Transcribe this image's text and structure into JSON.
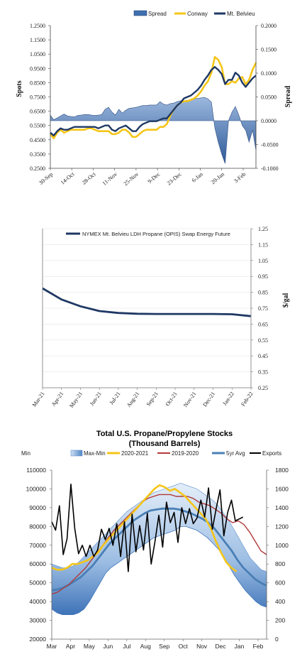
{
  "chart_data": [
    {
      "type": "line",
      "title": "",
      "ylabel": "Spots",
      "y2label": "Spread",
      "ylim": [
        0.25,
        1.25
      ],
      "y2lim": [
        -0.1,
        0.2
      ],
      "yticks": [
        "1.2500",
        "1.1500",
        "1.0500",
        "0.9500",
        "0.8500",
        "0.7500",
        "0.6500",
        "0.5500",
        "0.4500",
        "0.3500",
        "0.2500"
      ],
      "y2ticks": [
        "0.2000",
        "0.1500",
        "0.1000",
        "0.0500",
        "0.0000",
        "-0.0500",
        "-0.1000"
      ],
      "xticks": [
        "30-Sep",
        "14-Oct",
        "28-Oct",
        "11-Nov",
        "25-Nov",
        "9-Dec",
        "23-Dec",
        "6-Jan",
        "20-Jan",
        "3-Feb"
      ],
      "legend": [
        "Spread",
        "Conway",
        "Mt. Belvieu"
      ],
      "legend_position": "top-right",
      "colors": {
        "spread": "#3f6fb0",
        "conway": "#f5c518",
        "belvieu": "#1f3864"
      },
      "series": [
        {
          "name": "Conway",
          "values": [
            0.49,
            0.46,
            0.5,
            0.52,
            0.5,
            0.51,
            0.52,
            0.52,
            0.52,
            0.52,
            0.52,
            0.53,
            0.53,
            0.52,
            0.51,
            0.51,
            0.51,
            0.51,
            0.49,
            0.49,
            0.5,
            0.52,
            0.52,
            0.5,
            0.47,
            0.47,
            0.49,
            0.51,
            0.52,
            0.52,
            0.52,
            0.52,
            0.54,
            0.54,
            0.56,
            0.62,
            0.66,
            0.69,
            0.71,
            0.72,
            0.72,
            0.73,
            0.74,
            0.76,
            0.79,
            0.83,
            0.86,
            0.92,
            1.03,
            1.01,
            0.96,
            0.84,
            0.84,
            0.86,
            0.85,
            0.88,
            0.89,
            0.84,
            0.87,
            0.94,
            0.99
          ]
        },
        {
          "name": "Mt. Belvieu",
          "values": [
            0.5,
            0.48,
            0.51,
            0.53,
            0.52,
            0.52,
            0.53,
            0.54,
            0.54,
            0.54,
            0.54,
            0.54,
            0.54,
            0.54,
            0.53,
            0.54,
            0.55,
            0.55,
            0.52,
            0.51,
            0.53,
            0.54,
            0.55,
            0.53,
            0.51,
            0.51,
            0.54,
            0.56,
            0.57,
            0.58,
            0.58,
            0.58,
            0.59,
            0.6,
            0.6,
            0.63,
            0.66,
            0.69,
            0.71,
            0.74,
            0.75,
            0.76,
            0.78,
            0.8,
            0.83,
            0.87,
            0.9,
            0.94,
            0.96,
            0.94,
            0.91,
            0.84,
            0.87,
            0.87,
            0.92,
            0.9,
            0.85,
            0.82,
            0.85,
            0.88,
            0.9
          ]
        },
        {
          "name": "Spread",
          "values": [
            0.012,
            0.002,
            0.006,
            0.01,
            0.014,
            0.01,
            0.009,
            0.008,
            0.011,
            0.012,
            0.013,
            0.013,
            0.012,
            0.011,
            0.012,
            0.013,
            0.024,
            0.028,
            0.018,
            0.012,
            0.024,
            0.016,
            0.022,
            0.026,
            0.027,
            0.028,
            0.03,
            0.032,
            0.032,
            0.033,
            0.033,
            0.033,
            0.04,
            0.035,
            0.033,
            0.036,
            0.037,
            0.04,
            0.042,
            0.042,
            0.043,
            0.044,
            0.046,
            0.047,
            0.048,
            0.049,
            0.046,
            0.039,
            -0.015,
            -0.045,
            -0.07,
            -0.09,
            0.0,
            0.018,
            0.03,
            0.012,
            -0.01,
            -0.02,
            -0.045,
            -0.02,
            -0.062
          ]
        }
      ]
    },
    {
      "type": "line",
      "title": "",
      "y2label": "$/gal",
      "y2lim": [
        0.25,
        1.25
      ],
      "y2ticks": [
        "1.25",
        "1.15",
        "1.05",
        "0.95",
        "0.85",
        "0.75",
        "0.65",
        "0.55",
        "0.45",
        "0.35",
        "0.25"
      ],
      "xticks": [
        "Mar-21",
        "Apr-21",
        "May-21",
        "Jun-21",
        "Jul-21",
        "Aug-21",
        "Sep-21",
        "Oct-21",
        "Nov-21",
        "Dec-21",
        "Jan-22",
        "Feb-22"
      ],
      "legend": [
        "NYMEX Mt. Belvieu LDH Propane (OPIS) Swap Energy Future"
      ],
      "legend_position": "top-left",
      "colors": {
        "line": "#1f3864"
      },
      "series": [
        {
          "name": "NYMEX Mt. Belvieu LDH Propane (OPIS) Swap Energy Future",
          "values": [
            0.875,
            0.805,
            0.762,
            0.732,
            0.72,
            0.715,
            0.714,
            0.714,
            0.714,
            0.714,
            0.712,
            0.7
          ]
        }
      ]
    },
    {
      "type": "area",
      "title": "Total U.S. Propane/Propylene Stocks",
      "subtitle": "(Thousand Barrels)",
      "ylim": [
        20000,
        110000
      ],
      "y2lim": [
        0,
        1800
      ],
      "yticks": [
        "110000",
        "100000",
        "90000",
        "80000",
        "70000",
        "60000",
        "50000",
        "40000",
        "30000",
        "20000"
      ],
      "y2ticks": [
        "1800",
        "1600",
        "1400",
        "1200",
        "1000",
        "800",
        "600",
        "400",
        "200",
        "0"
      ],
      "xticks": [
        "Mar",
        "Apr",
        "May",
        "Jun",
        "Jul",
        "Aug",
        "Sep",
        "Oct",
        "Nov",
        "Dec",
        "Jan",
        "Feb"
      ],
      "legend": [
        "Min",
        "Max-Min",
        "2020-2021",
        "2019-2020",
        "5yr Avg",
        "Exports"
      ],
      "legend_position": "top",
      "colors": {
        "band": "#6f9bd3",
        "y2020": "#f5c518",
        "y2019": "#b03a3a",
        "avg": "#4a7fb5",
        "exports": "#000000"
      },
      "x_weeks": 52,
      "min_band": [
        36000,
        34000,
        33000,
        33000,
        33000,
        34000,
        36000,
        40000,
        45000,
        50000,
        55000,
        58000,
        60000,
        62000,
        64000,
        66000,
        68000,
        70000,
        72000,
        74000,
        75000,
        76000,
        77000,
        78000,
        80000,
        80000,
        79000,
        78000,
        76000,
        74000,
        71000,
        68000,
        64000,
        59000,
        54000,
        50000,
        46000,
        43000,
        40000,
        38000,
        37000
      ],
      "max_band": [
        60000,
        59000,
        58000,
        58000,
        59000,
        61000,
        64000,
        67000,
        70000,
        73000,
        76000,
        79000,
        82000,
        85000,
        88000,
        90000,
        92000,
        94000,
        96000,
        98000,
        99000,
        100000,
        101000,
        102000,
        103000,
        102000,
        101000,
        100000,
        98000,
        96000,
        94000,
        91000,
        87000,
        83000,
        78000,
        73000,
        68000,
        63000,
        60000,
        57000,
        56000
      ],
      "series": [
        {
          "name": "2020-2021",
          "values": [
            58000,
            57000,
            57000,
            58000,
            60000,
            60000,
            61000,
            62000,
            64000,
            66000,
            70000,
            73000,
            76000,
            79000,
            82000,
            85000,
            88000,
            91000,
            94000,
            97000,
            100000,
            102000,
            101000,
            99000,
            100000,
            98000,
            96000,
            93000,
            90000,
            87000,
            84000,
            79000,
            72000,
            66000,
            61000,
            58000,
            56000
          ]
        },
        {
          "name": "2019-2020",
          "values": [
            44000,
            45000,
            47000,
            49000,
            52000,
            55000,
            58000,
            62000,
            66000,
            70000,
            74000,
            78000,
            81000,
            84000,
            87000,
            90000,
            93000,
            95000,
            96000,
            97000,
            97000,
            97000,
            96000,
            96000,
            96000,
            95000,
            93000,
            92000,
            91000,
            89000,
            87000,
            84000,
            82000,
            83000,
            81000,
            77000,
            72000,
            67000,
            65000
          ]
        },
        {
          "name": "5yr Avg",
          "values": [
            46000,
            46500,
            47500,
            49000,
            51000,
            53000,
            56000,
            59000,
            63000,
            67000,
            71000,
            74000,
            77000,
            80000,
            83000,
            85000,
            87000,
            88500,
            89000,
            89500,
            89500,
            89500,
            89000,
            88000,
            87000,
            85500,
            84000,
            82000,
            79000,
            75000,
            71000,
            67000,
            62000,
            58000,
            55000,
            52000,
            50000,
            48500
          ]
        },
        {
          "name": "Exports",
          "values": [
            1250,
            1160,
            1420,
            900,
            1070,
            1650,
            1180,
            910,
            1000,
            880,
            1000,
            880,
            950,
            1170,
            1060,
            1180,
            1000,
            1230,
            880,
            1250,
            720,
            1330,
            930,
            1210,
            950,
            1340,
            800,
            1040,
            1320,
            980,
            1460,
            1240,
            1350,
            1030,
            1400,
            1230,
            1390,
            1230,
            1290,
            1480,
            1300,
            1610,
            1170,
            1390,
            1590,
            1100,
            1350,
            1480,
            1260,
            1280,
            1300
          ]
        }
      ]
    }
  ]
}
